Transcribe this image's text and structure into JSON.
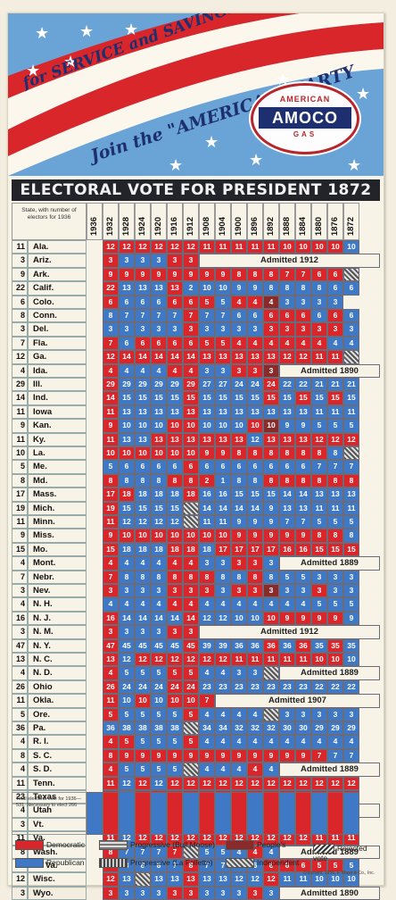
{
  "banner": {
    "line1": "for SERVICE and SAVINGS",
    "line2": "Join the \"AMERICAN\" PARTY",
    "logo_top": "AMERICAN",
    "logo_main": "AMOCO",
    "logo_bottom": "GAS"
  },
  "title": "ELECTORAL VOTE FOR PRESIDENT 1872 TO 1932",
  "header_note": "State, with number of electors for 1936",
  "years": [
    "1936",
    "1932",
    "1928",
    "1924",
    "1920",
    "1916",
    "1912",
    "1908",
    "1904",
    "1900",
    "1896",
    "1892",
    "1888",
    "1884",
    "1880",
    "1876",
    "1872"
  ],
  "rows": [
    {
      "ev": "11",
      "state": "Ala.",
      "cells": "?|r12|r12|r12|r12|r12|r12|r11|r11|r11|r11|r11|r10|r10|r10|r10|b10"
    },
    {
      "ev": "3",
      "state": "Ariz.",
      "cells": "?|r3|b3|b3|b3|r3|r3",
      "admit": "Admitted 1912"
    },
    {
      "ev": "9",
      "state": "Ark.",
      "cells": "?|r9|r9|r9|r9|r9|r9|r9|r9|r8|r8|r8|r7|r7|r6|r6|x"
    },
    {
      "ev": "22",
      "state": "Calif.",
      "cells": "?|r22|b13|b13|b13|r13|b2|b10|b10|b9|b9|b8|b8|b8|b8|b6|b6"
    },
    {
      "ev": "6",
      "state": "Colo.",
      "cells": "?|r6|b6|b6|b6|r6|r6|r5|b5|r4|r4|p4|b3|b3|b3|b3|?"
    },
    {
      "ev": "8",
      "state": "Conn.",
      "cells": "?|b8|b7|b7|b7|b7|r7|b7|b7|b6|b6|r6|r6|r6|b6|r6|b6"
    },
    {
      "ev": "3",
      "state": "Del.",
      "cells": "?|b3|b3|b3|b3|b3|r3|b3|b3|b3|b3|r3|r3|r3|r3|r3|b3"
    },
    {
      "ev": "7",
      "state": "Fla.",
      "cells": "?|r7|b6|r6|r6|r6|r6|r5|r5|r4|r4|r4|r4|r4|r4|b4|b4"
    },
    {
      "ev": "12",
      "state": "Ga.",
      "cells": "?|r12|r14|r14|r14|r14|r14|r13|r13|r13|r13|r13|r12|r12|r11|r11|x"
    },
    {
      "ev": "4",
      "state": "Ida.",
      "cells": "?|r4|b4|b4|b4|r4|r4|b3|b3|r3|r3|p3",
      "admit": "Admitted 1890"
    },
    {
      "ev": "29",
      "state": "Ill.",
      "cells": "?|r29|b29|b29|b29|b29|r29|b27|b27|b24|b24|r24|b22|b22|b21|b21|b21"
    },
    {
      "ev": "14",
      "state": "Ind.",
      "cells": "?|r14|b15|b15|b15|b15|r15|b15|b15|b15|b15|r15|b15|r15|b15|r15|b15"
    },
    {
      "ev": "11",
      "state": "Iowa",
      "cells": "?|r11|b13|b13|b13|b13|r13|b13|b13|b13|b13|b13|b13|b13|b11|b11|b11"
    },
    {
      "ev": "9",
      "state": "Kan.",
      "cells": "?|r9|b10|b10|b10|r10|r10|b10|b10|b10|r10|p10|b9|b9|b5|b5|b5"
    },
    {
      "ev": "11",
      "state": "Ky.",
      "cells": "?|r11|b13|b13|r13|r13|r13|r13|r13|r13|b12|r13|r13|r13|r12|r12|r12"
    },
    {
      "ev": "10",
      "state": "La.",
      "cells": "?|r10|r10|r10|r10|r10|r10|r9|r9|r8|r8|r8|r8|r8|r8|b8|x"
    },
    {
      "ev": "5",
      "state": "Me.",
      "cells": "?|b5|b6|b6|b6|b6|r6|b6|b6|b6|b6|b6|b6|b6|b7|b7|b7"
    },
    {
      "ev": "8",
      "state": "Md.",
      "cells": "?|r8|b8|b8|b8|r8|r8|r2|b1|b8|b8|r8|r8|r8|r8|r8|r8"
    },
    {
      "ev": "17",
      "state": "Mass.",
      "cells": "?|r17|r18|b18|b18|b18|r18|b16|b16|b15|b15|b15|b14|b14|b13|b13|b13"
    },
    {
      "ev": "19",
      "state": "Mich.",
      "cells": "?|r19|b15|b15|b15|b15|x|b14|b14|b14|b14|b9|b13|b13|b11|b11|b11"
    },
    {
      "ev": "11",
      "state": "Minn.",
      "cells": "?|r11|b12|b12|b12|b12|x|b11|b11|b9|b9|b9|b7|b7|b5|b5|b5"
    },
    {
      "ev": "9",
      "state": "Miss.",
      "cells": "?|r9|r10|r10|r10|r10|r10|r10|r10|r9|r9|r9|r9|r9|r8|r8|b8"
    },
    {
      "ev": "15",
      "state": "Mo.",
      "cells": "?|r15|b18|b18|b18|r18|r18|b18|r17|r17|r17|r17|r16|r16|r15|r15|r15"
    },
    {
      "ev": "4",
      "state": "Mont.",
      "cells": "?|r4|b4|b4|b4|r4|r4|b3|b3|r3|r3|b3",
      "admit": "Admitted 1889"
    },
    {
      "ev": "7",
      "state": "Nebr.",
      "cells": "?|r7|b8|b8|b8|r8|r8|r8|b8|b8|r8|b8|b5|b5|b3|b3|b3"
    },
    {
      "ev": "3",
      "state": "Nev.",
      "cells": "?|r3|b3|b3|b3|r3|r3|r3|b3|r3|r3|p3|b3|b3|r3|b3|b3"
    },
    {
      "ev": "4",
      "state": "N. H.",
      "cells": "?|b4|b4|b4|b4|r4|r4|b4|b4|b4|b4|b4|b4|b4|b5|b5|b5"
    },
    {
      "ev": "16",
      "state": "N. J.",
      "cells": "?|r16|b14|b14|b14|b14|r14|b12|b12|b10|b10|r10|r9|r9|r9|r9|b9"
    },
    {
      "ev": "3",
      "state": "N. M.",
      "cells": "?|r3|b3|b3|b3|r3|r3",
      "admit": "Admitted 1912"
    },
    {
      "ev": "47",
      "state": "N. Y.",
      "cells": "?|r47|b45|b45|b45|b45|r45|b39|b39|b36|b36|r36|b36|r36|b35|r35|b35"
    },
    {
      "ev": "13",
      "state": "N. C.",
      "cells": "?|r13|b12|r12|r12|r12|r12|r12|r12|r11|r11|r11|r11|r11|r10|r10|b10"
    },
    {
      "ev": "4",
      "state": "N. D.",
      "cells": "?|r4|b5|b5|b5|r5|r5|b4|b4|b3|b3|x",
      "admit": "Admitted 1889"
    },
    {
      "ev": "26",
      "state": "Ohio",
      "cells": "?|r26|b24|b24|b24|r24|r24|b23|b23|b23|b23|b23|b23|b23|b22|b22|b22"
    },
    {
      "ev": "11",
      "state": "Okla.",
      "cells": "?|r11|b10|r10|b10|r10|r10|r7",
      "admit": "Admitted 1907"
    },
    {
      "ev": "5",
      "state": "Ore.",
      "cells": "?|r5|b5|b5|b5|b5|r5|b4|b4|b4|b4|x|b3|b3|b3|b3|b3"
    },
    {
      "ev": "36",
      "state": "Pa.",
      "cells": "?|b36|b38|b38|b38|b38|x|b34|b34|b32|b32|b32|b30|b30|b29|b29|b29"
    },
    {
      "ev": "4",
      "state": "R. I.",
      "cells": "?|r4|r5|b5|b5|b5|r5|b4|b4|b4|b4|b4|b4|b4|b4|b4|b4"
    },
    {
      "ev": "8",
      "state": "S. C.",
      "cells": "?|r8|r9|r9|r9|r9|r9|r9|r9|r9|r9|r9|r9|r9|r7|b7|b7"
    },
    {
      "ev": "4",
      "state": "S. D.",
      "cells": "?|r4|b5|b5|b5|b5|x|b4|b4|b4|r4|b4",
      "admit": "Admitted 1889"
    },
    {
      "ev": "11",
      "state": "Tenn.",
      "cells": "?|r11|b12|r12|b12|r12|r12|r12|r12|r12|r12|r12|r12|r12|r12|r12|r12"
    },
    {
      "ev": "23",
      "state": "Texas",
      "cells": "?|r23|b20|r20|r20|r20|r20|r18|r18|r15|r15|r15|r13|r13|r8|r8|r8"
    },
    {
      "ev": "4",
      "state": "Utah",
      "cells": "?|r4|b4|b4|b4|r4|b4|b3|b3|b3|r3",
      "admit": "Admitted 1896"
    },
    {
      "ev": "3",
      "state": "Vt.",
      "cells": "?|b3|b4|b4|b4|b4|b4|b4|b4|b4|b4|b4|b4|b4|b5|b5|b5"
    },
    {
      "ev": "11",
      "state": "Va.",
      "cells": "?|r11|b12|r12|r12|r12|r12|r12|r12|r12|r12|r12|r12|r12|r11|r11|r11"
    },
    {
      "ev": "8",
      "state": "Wash.",
      "cells": "?|r8|b7|b7|b7|r7|x|b5|b5|b4|r4|b4",
      "admit": "Admitted 1889"
    },
    {
      "ev": "8",
      "state": "W. Va.",
      "cells": "?|r8|b8|b8|b8|b7|r8|b7|b7|b6|b6|r6|r6|r6|r5|r5|b5"
    },
    {
      "ev": "12",
      "state": "Wisc.",
      "cells": "?|r12|b13|x|b13|b13|r13|b13|b13|b12|b12|r12|b11|b11|b10|b10|b10"
    },
    {
      "ev": "3",
      "state": "Wyo.",
      "cells": "?|r3|b3|b3|b3|r3|r3|b3|b3|b3|r3|b3",
      "admit": "Admitted 1890"
    }
  ],
  "footer_note": "Total electoral vote for 1936—531. Necessary to elect 266",
  "legend": {
    "democratic": "Democratic",
    "republican": "Republican",
    "bull_moose": "Progressive (Bull Moose)",
    "la_follette": "Progressive (La Follette)",
    "peoples": "People's",
    "independent": "Independent",
    "rejected": "Rejected vote"
  },
  "copyright": "Copyright, 1936, F. Mayo & Co., Inc.",
  "colors": {
    "democratic": "#d9262b",
    "republican": "#3f79c6",
    "peoples": "#8a2b2b"
  }
}
